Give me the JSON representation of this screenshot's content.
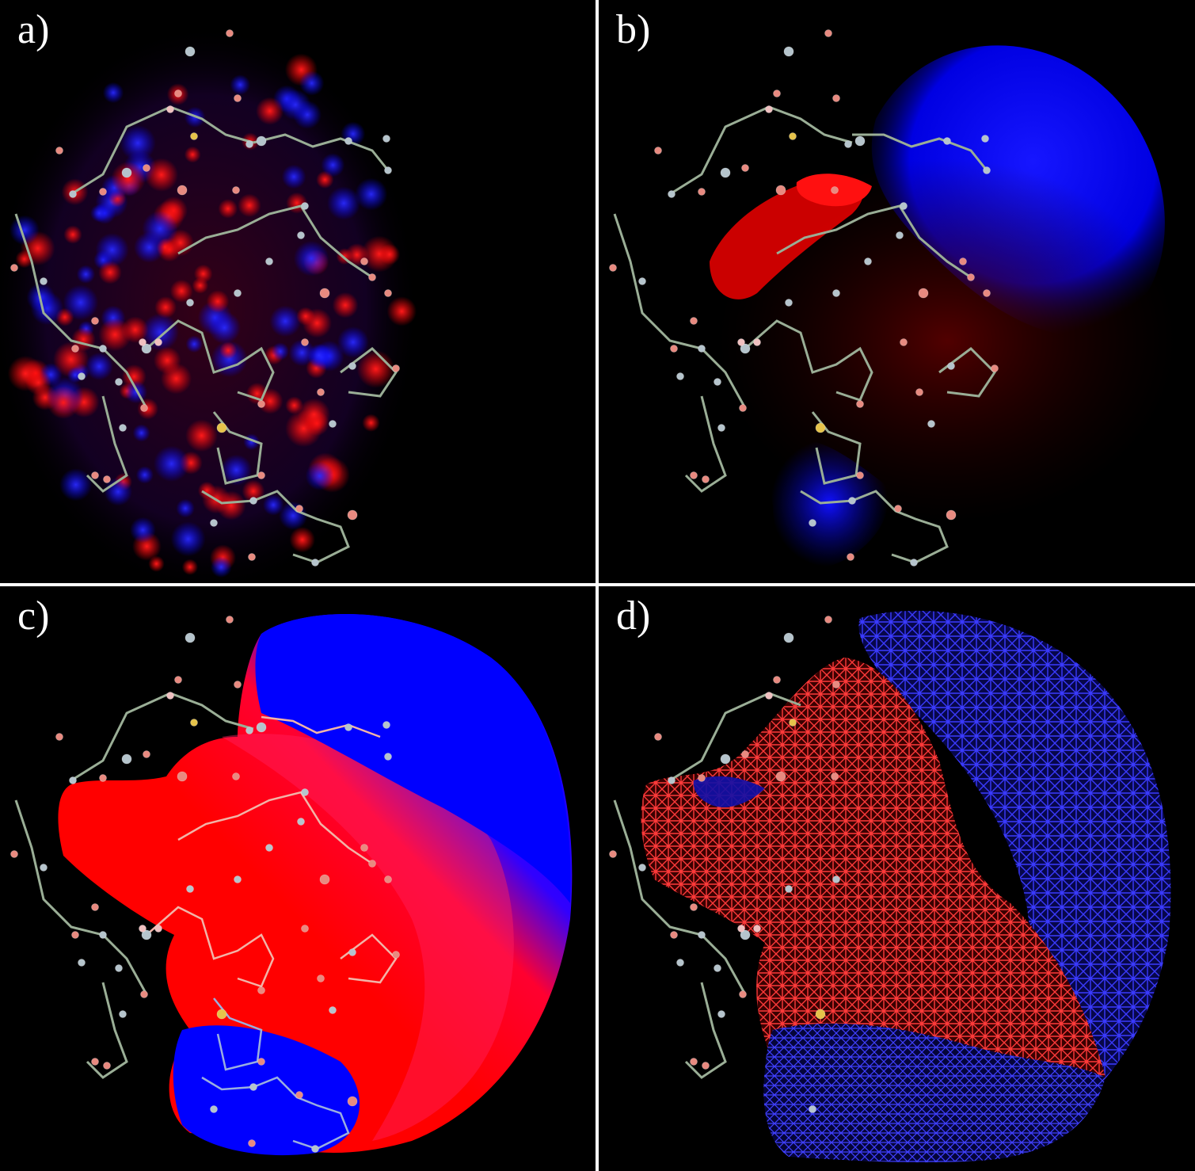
{
  "panels": [
    {
      "id": "a",
      "label": "a)"
    },
    {
      "id": "b",
      "label": "b)"
    },
    {
      "id": "c",
      "label": "c)"
    },
    {
      "id": "d",
      "label": "d)"
    }
  ],
  "colors": {
    "background": "#000000",
    "divider": "#ffffff",
    "positive_potential": "#ff0000",
    "negative_potential": "#0000ff",
    "bonds": "#9aae96",
    "carbon_atom": "#b5c4cc",
    "oxygen_atom": "#e88a80",
    "sulfur_atom": "#e6c34a"
  },
  "icons": [
    "molecule-wireframe",
    "electrostatic-potential-cloud",
    "potential-mesh"
  ]
}
